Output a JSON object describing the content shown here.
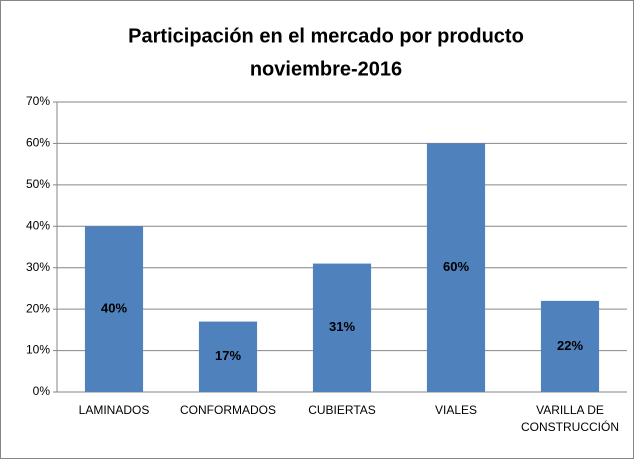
{
  "chart_data": {
    "type": "bar",
    "title": "Participación en el mercado por producto",
    "subtitle": "noviembre-2016",
    "categories": [
      "LAMINADOS",
      "CONFORMADOS",
      "CUBIERTAS",
      "VIALES",
      "VARILLA DE CONSTRUCCIÓN"
    ],
    "values": [
      40,
      17,
      31,
      60,
      22
    ],
    "value_labels": [
      "40%",
      "17%",
      "31%",
      "60%",
      "22%"
    ],
    "color": "#4f81bd",
    "ylim": [
      0,
      70
    ],
    "yticks": [
      {
        "value": 0,
        "label": "0%"
      },
      {
        "value": 10,
        "label": "10%"
      },
      {
        "value": 20,
        "label": "20%"
      },
      {
        "value": 30,
        "label": "30%"
      },
      {
        "value": 40,
        "label": "40%"
      },
      {
        "value": 50,
        "label": "50%"
      },
      {
        "value": 60,
        "label": "60%"
      },
      {
        "value": 70,
        "label": "70%"
      }
    ],
    "grid": true
  }
}
